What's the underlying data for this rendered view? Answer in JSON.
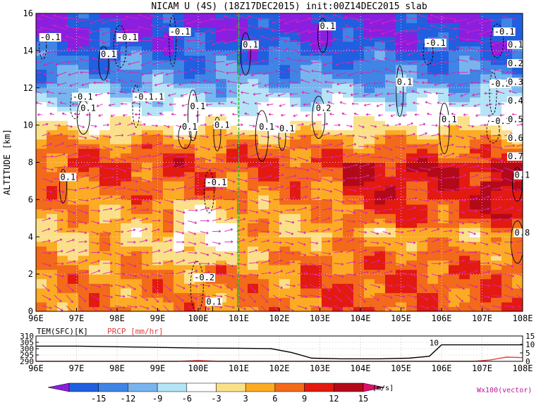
{
  "chart_data": [
    {
      "type": "heatmap",
      "title": "NICAM U (4S) (18Z17DEC2015) init:00Z14DEC2015 slab",
      "ylabel": "ALTITUDE [km]",
      "xlabel": "",
      "x_ticks": [
        "96E",
        "97E",
        "98E",
        "99E",
        "100E",
        "101E",
        "102E",
        "103E",
        "104E",
        "105E",
        "106E",
        "107E",
        "108E"
      ],
      "y_ticks": [
        "0",
        "2",
        "4",
        "6",
        "8",
        "10",
        "12",
        "14",
        "16"
      ],
      "xlim": [
        96,
        108
      ],
      "ylim": [
        0,
        16
      ],
      "grid": true,
      "colorbar": {
        "ticks": [
          "-15",
          "-12",
          "-9",
          "-6",
          "-3",
          "3",
          "6",
          "9",
          "12",
          "15"
        ],
        "unit": "[m/s]",
        "colors": [
          "#8a1fe0",
          "#1f5fe0",
          "#3f85e6",
          "#78b4ee",
          "#b4e4f6",
          "#ffffff",
          "#fbe08a",
          "#fbab24",
          "#f26a1a",
          "#e21a10",
          "#b30a1a",
          "#e0106e"
        ]
      },
      "vector_label": "Wx100(vector)",
      "contour_labels": [
        {
          "text": "-0.1",
          "x": 96.1,
          "y": 14.6
        },
        {
          "text": "0.1",
          "x": 97.6,
          "y": 13.7
        },
        {
          "text": "-0.1",
          "x": 98.0,
          "y": 14.6
        },
        {
          "text": "-0.1",
          "x": 99.3,
          "y": 14.9
        },
        {
          "text": "-0.1",
          "x": 96.9,
          "y": 11.4
        },
        {
          "text": "0.1",
          "x": 97.1,
          "y": 10.8
        },
        {
          "text": "-0.1.1",
          "x": 98.4,
          "y": 11.4
        },
        {
          "text": "0.1",
          "x": 99.8,
          "y": 10.9
        },
        {
          "text": "0.1",
          "x": 99.6,
          "y": 9.8
        },
        {
          "text": "0.1",
          "x": 100.4,
          "y": 9.9
        },
        {
          "text": "0.1",
          "x": 101.1,
          "y": 14.2
        },
        {
          "text": "0.1",
          "x": 101.5,
          "y": 9.8
        },
        {
          "text": "0.1",
          "x": 102.0,
          "y": 9.7
        },
        {
          "text": "0.1",
          "x": 103.0,
          "y": 15.2
        },
        {
          "text": "0.2",
          "x": 102.9,
          "y": 10.8
        },
        {
          "text": "0.1",
          "x": 104.9,
          "y": 12.2
        },
        {
          "text": "-0.1",
          "x": 105.6,
          "y": 14.3
        },
        {
          "text": "-0.1",
          "x": 107.3,
          "y": 14.9
        },
        {
          "text": "-0.2",
          "x": 107.2,
          "y": 12.1
        },
        {
          "text": "0.1",
          "x": 106.0,
          "y": 10.2
        },
        {
          "text": "-0.1",
          "x": 107.2,
          "y": 10.1
        },
        {
          "text": "0.1",
          "x": 96.6,
          "y": 7.1
        },
        {
          "text": "-0.1",
          "x": 100.2,
          "y": 6.8
        },
        {
          "text": "-0.2",
          "x": 99.9,
          "y": 1.7
        },
        {
          "text": "0.1",
          "x": 100.2,
          "y": 0.4
        },
        {
          "text": "0.1",
          "x": 107.8,
          "y": 7.2
        },
        {
          "text": "0.8",
          "x": 107.8,
          "y": 4.1
        }
      ],
      "right_edge_labels": [
        "0.1",
        "0.2",
        "0.3",
        "0.4",
        "0.5",
        "0.6",
        "0.7"
      ],
      "vertical_line_x": 101.0,
      "representative_profile": [
        {
          "altitude_km": 15,
          "u": -15
        },
        {
          "altitude_km": 12.5,
          "u": -9
        },
        {
          "altitude_km": 11,
          "u": -3
        },
        {
          "altitude_km": 10,
          "u": 3
        },
        {
          "altitude_km": 9,
          "u": 9
        },
        {
          "altitude_km": 8,
          "u": 12
        },
        {
          "altitude_km": 6,
          "u": 9
        },
        {
          "altitude_km": 4,
          "u": 6
        },
        {
          "altitude_km": 2,
          "u": 9
        },
        {
          "altitude_km": 0.5,
          "u": 9
        }
      ]
    },
    {
      "type": "line",
      "title": "",
      "series": [
        {
          "name": "TEM(SFC)[K]",
          "axis": "left",
          "x": [
            96,
            97,
            98,
            99,
            100,
            101,
            101.8,
            102.3,
            102.8,
            103.5,
            104.5,
            105.2,
            105.7,
            106.0,
            106.5,
            107,
            107.8,
            108
          ],
          "values": [
            302,
            302,
            301.5,
            301,
            300.5,
            300.3,
            300,
            297,
            292.5,
            292,
            292,
            292.5,
            294,
            303,
            303,
            303,
            303,
            303
          ]
        },
        {
          "name": "PRCP [mm/hr]",
          "axis": "right",
          "x": [
            96,
            99.5,
            100.0,
            100.5,
            101,
            106.8,
            107.2,
            107.6,
            108
          ],
          "values": [
            0,
            0,
            0.5,
            0,
            0,
            0,
            0.8,
            2.5,
            2.2
          ]
        }
      ],
      "left_ticks": [
        "290",
        "295",
        "300",
        "305",
        "310"
      ],
      "right_ticks": [
        "0",
        "5",
        "10",
        "15"
      ],
      "x_ticks": [
        "96E",
        "97E",
        "98E",
        "99E",
        "100E",
        "101E",
        "102E",
        "103E",
        "104E",
        "105E",
        "106E",
        "107E",
        "108E"
      ],
      "ylim_left": [
        290,
        310
      ],
      "ylim_right": [
        0,
        15
      ],
      "annotation": "10"
    }
  ]
}
